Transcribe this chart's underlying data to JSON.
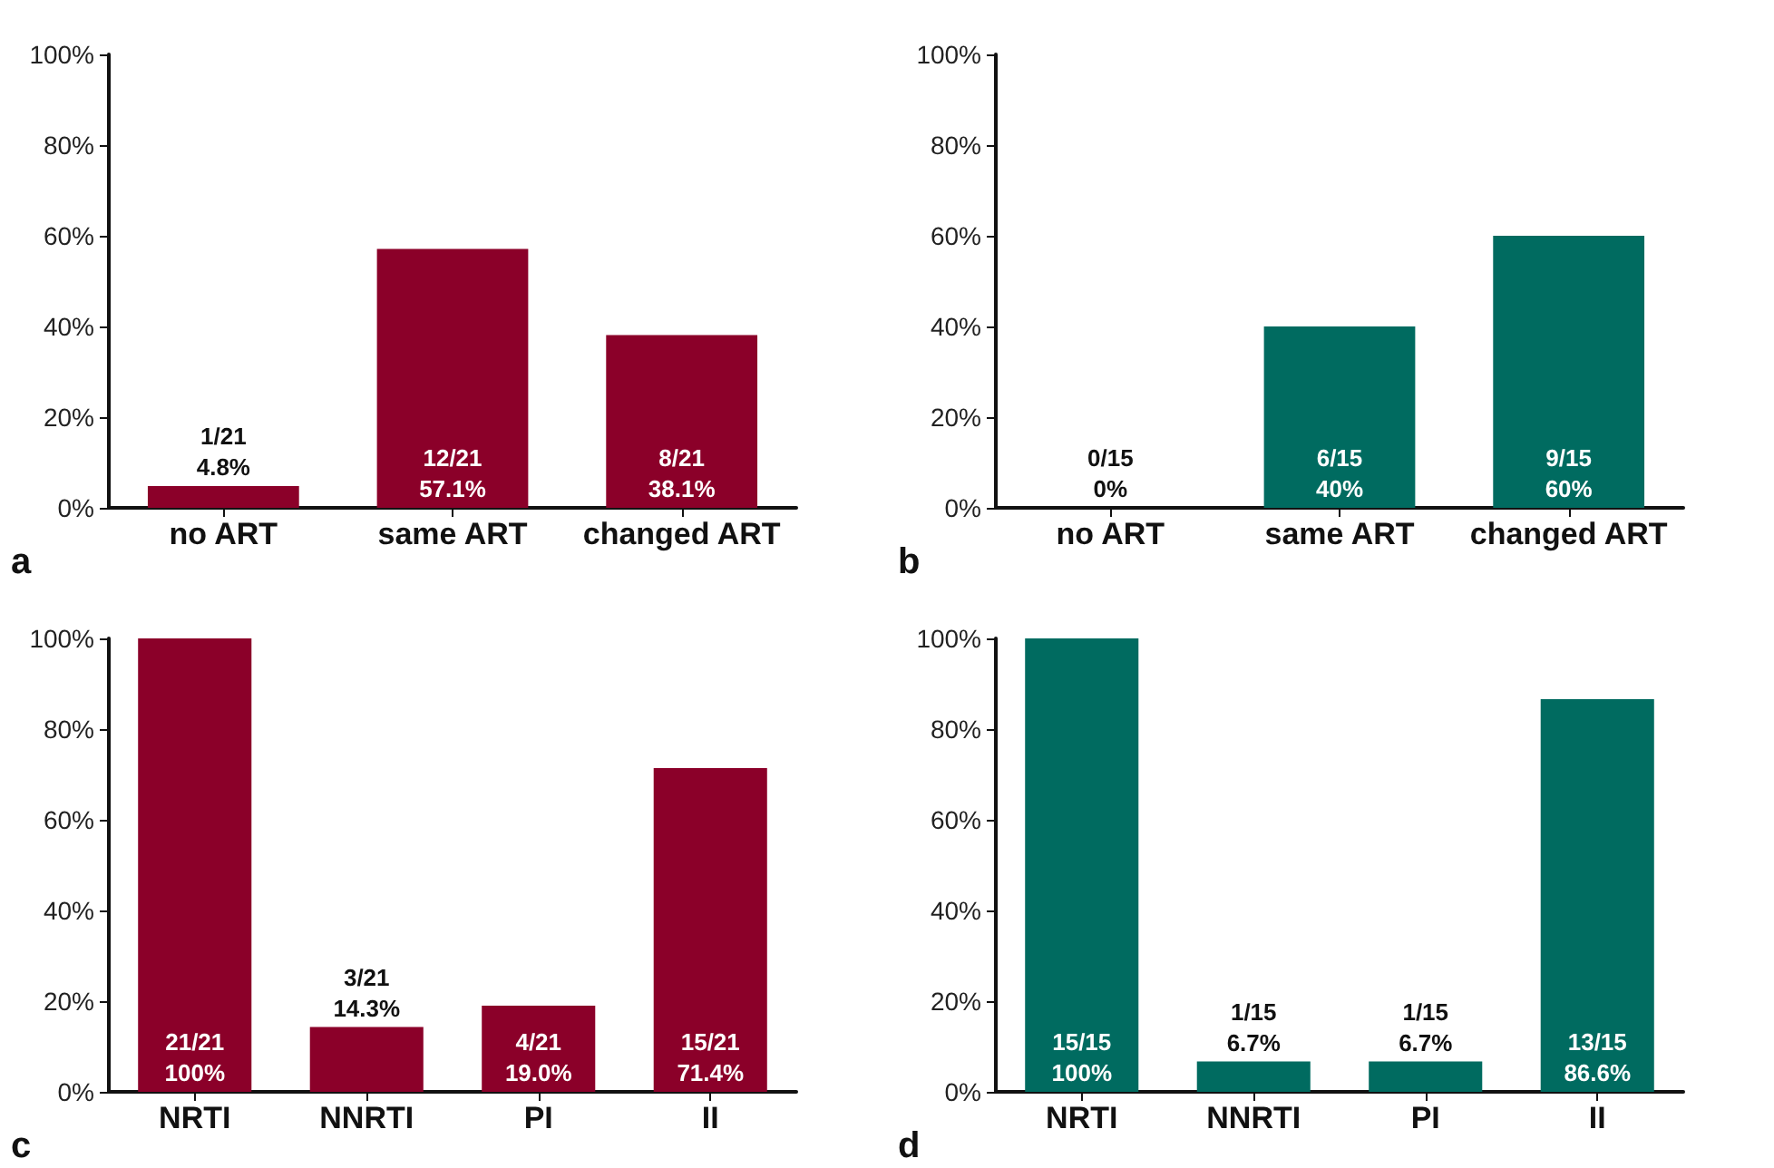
{
  "chart_data": [
    {
      "type": "bar",
      "categories": [
        "no ART",
        "same ART",
        "changed ART"
      ],
      "values": [
        4.8,
        57.1,
        38.1
      ],
      "color": "#8b0029",
      "value_labels": [
        "1/21\n4.8%",
        "12/21\n57.1%",
        "8/21\n38.1%"
      ],
      "ylim": [
        0,
        100
      ],
      "yticks": [
        {
          "value": 0,
          "label": "0%"
        },
        {
          "value": 20,
          "label": "20%"
        },
        {
          "value": 40,
          "label": "40%"
        },
        {
          "value": 60,
          "label": "60%"
        },
        {
          "value": 80,
          "label": "80%"
        },
        {
          "value": 100,
          "label": "100%"
        }
      ],
      "grid": false,
      "annotations": [
        "a"
      ]
    },
    {
      "type": "bar",
      "categories": [
        "no ART",
        "same ART",
        "changed ART"
      ],
      "values": [
        0,
        40,
        60
      ],
      "color": "#006b60",
      "value_labels": [
        "0/15\n0%",
        "6/15\n40%",
        "9/15\n60%"
      ],
      "ylim": [
        0,
        100
      ],
      "yticks": [
        {
          "value": 0,
          "label": "0%"
        },
        {
          "value": 20,
          "label": "20%"
        },
        {
          "value": 40,
          "label": "40%"
        },
        {
          "value": 60,
          "label": "60%"
        },
        {
          "value": 80,
          "label": "80%"
        },
        {
          "value": 100,
          "label": "100%"
        }
      ],
      "grid": false,
      "annotations": [
        "b"
      ]
    },
    {
      "type": "bar",
      "categories": [
        "NRTI",
        "NNRTI",
        "PI",
        "II"
      ],
      "values": [
        100,
        14.3,
        19.0,
        71.4
      ],
      "color": "#8b0029",
      "value_labels": [
        "21/21\n100%",
        "3/21\n14.3%",
        "4/21\n19.0%",
        "15/21\n71.4%"
      ],
      "ylim": [
        0,
        100
      ],
      "yticks": [
        {
          "value": 0,
          "label": "0%"
        },
        {
          "value": 20,
          "label": "20%"
        },
        {
          "value": 40,
          "label": "40%"
        },
        {
          "value": 60,
          "label": "60%"
        },
        {
          "value": 80,
          "label": "80%"
        },
        {
          "value": 100,
          "label": "100%"
        }
      ],
      "grid": false,
      "annotations": [
        "c"
      ]
    },
    {
      "type": "bar",
      "categories": [
        "NRTI",
        "NNRTI",
        "PI",
        "II"
      ],
      "values": [
        100,
        6.7,
        6.7,
        86.6
      ],
      "color": "#006b60",
      "value_labels": [
        "15/15\n100%",
        "1/15\n6.7%",
        "1/15\n6.7%",
        "13/15\n86.6%"
      ],
      "ylim": [
        0,
        100
      ],
      "yticks": [
        {
          "value": 0,
          "label": "0%"
        },
        {
          "value": 20,
          "label": "20%"
        },
        {
          "value": 40,
          "label": "40%"
        },
        {
          "value": 60,
          "label": "60%"
        },
        {
          "value": 80,
          "label": "80%"
        },
        {
          "value": 100,
          "label": "100%"
        }
      ],
      "grid": false,
      "annotations": [
        "d"
      ]
    }
  ]
}
